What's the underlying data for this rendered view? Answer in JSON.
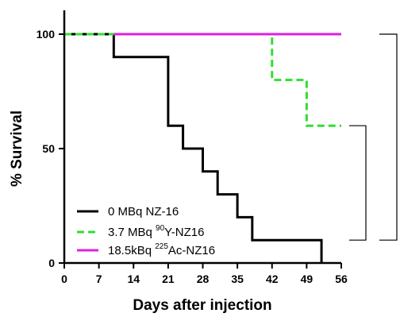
{
  "chart_data": {
    "type": "line",
    "step": true,
    "xlabel": "Days after injection",
    "ylabel": "% Survival",
    "xlim": [
      0,
      56
    ],
    "ylim": [
      0,
      100
    ],
    "x_ticks": [
      0,
      7,
      14,
      21,
      28,
      35,
      42,
      49,
      56
    ],
    "y_ticks": [
      0,
      50,
      100
    ],
    "grid": false,
    "legend_position": "bottom-left",
    "series": [
      {
        "name": "0 MBq NZ-16",
        "name_parts": {
          "pre": "0 MBq NZ-16",
          "sup": "",
          "post": ""
        },
        "color": "#000000",
        "dash": "solid",
        "x": [
          0,
          10,
          21,
          24,
          28,
          31,
          35,
          38,
          52
        ],
        "y": [
          100,
          90,
          60,
          50,
          40,
          30,
          20,
          10,
          0
        ]
      },
      {
        "name": "3.7 MBq 90Y-NZ16",
        "name_parts": {
          "pre": "3.7 MBq ",
          "sup": "90",
          "post": "Y-NZ16"
        },
        "color": "#33dd33",
        "dash": "dashed",
        "x": [
          0,
          42,
          49,
          56
        ],
        "y": [
          100,
          80,
          60,
          60
        ]
      },
      {
        "name": "18.5kBq 225Ac-NZ16",
        "name_parts": {
          "pre": "18.5kBq ",
          "sup": "225",
          "post": "Ac-NZ16"
        },
        "color": "#dd22dd",
        "dash": "solid",
        "x": [
          10,
          56
        ],
        "y": [
          100,
          100
        ]
      }
    ],
    "significance_brackets": [
      {
        "from_series": 1,
        "to_series": 0,
        "y_top": 60,
        "y_bottom": 10
      },
      {
        "from_series": 2,
        "to_series": 0,
        "y_top": 100,
        "y_bottom": 10
      }
    ]
  }
}
